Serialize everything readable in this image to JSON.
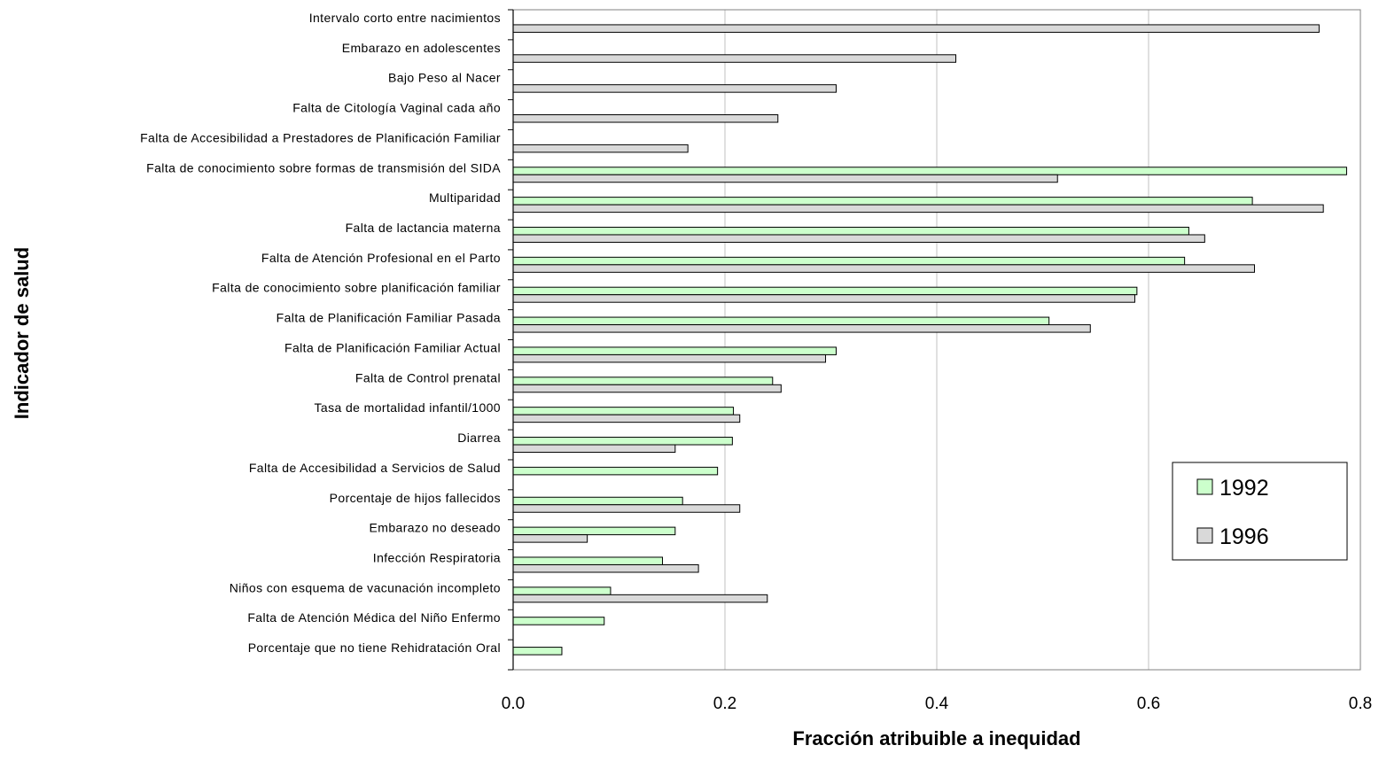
{
  "colors": {
    "series_1992": "#ccffcc",
    "series_1996": "#d9d9d9",
    "outline": "#000000",
    "grid": "#c0c0c0"
  },
  "chart_data": {
    "type": "bar",
    "orientation": "horizontal",
    "xlabel": "Fracción atribuible a inequidad",
    "ylabel": "Indicador de salud",
    "xlim": [
      0,
      0.8
    ],
    "xticks": [
      "0.0",
      "0.2",
      "0.4",
      "0.6",
      "0.8"
    ],
    "grid": "vertical gridlines",
    "legend_position": "right",
    "categories": [
      "Intervalo corto entre nacimientos",
      "Embarazo en adolescentes",
      "Bajo Peso al Nacer",
      "Falta de Citología Vaginal cada año",
      "Falta de Accesibilidad a Prestadores de Planificación Familiar",
      "Falta de conocimiento sobre formas de transmisión del SIDA",
      "Multiparidad",
      "Falta de lactancia materna",
      "Falta de Atención Profesional en el Parto",
      "Falta de conocimiento sobre planificación familiar",
      "Falta de Planificación Familiar Pasada",
      "Falta de Planificación Familiar Actual",
      "Falta de Control prenatal",
      "Tasa de mortalidad infantil/1000",
      "Diarrea",
      "Falta de Accesibilidad a Servicios de Salud",
      "Porcentaje de hijos fallecidos",
      "Embarazo no deseado",
      "Infección Respiratoria",
      "Niños con esquema de vacunación incompleto",
      "Falta de Atención Médica del Niño Enfermo",
      "Porcentaje que no tiene Rehidratación Oral"
    ],
    "series": [
      {
        "name": "1992",
        "values": [
          null,
          null,
          null,
          null,
          null,
          0.787,
          0.698,
          0.638,
          0.634,
          0.589,
          0.506,
          0.305,
          0.245,
          0.208,
          0.207,
          0.193,
          0.16,
          0.153,
          0.141,
          0.092,
          0.086,
          0.046
        ]
      },
      {
        "name": "1996",
        "values": [
          0.761,
          0.418,
          0.305,
          0.25,
          0.165,
          0.514,
          0.765,
          0.653,
          0.7,
          0.587,
          0.545,
          0.295,
          0.253,
          0.214,
          0.153,
          null,
          0.214,
          0.07,
          0.175,
          0.24,
          null,
          null
        ]
      }
    ]
  }
}
